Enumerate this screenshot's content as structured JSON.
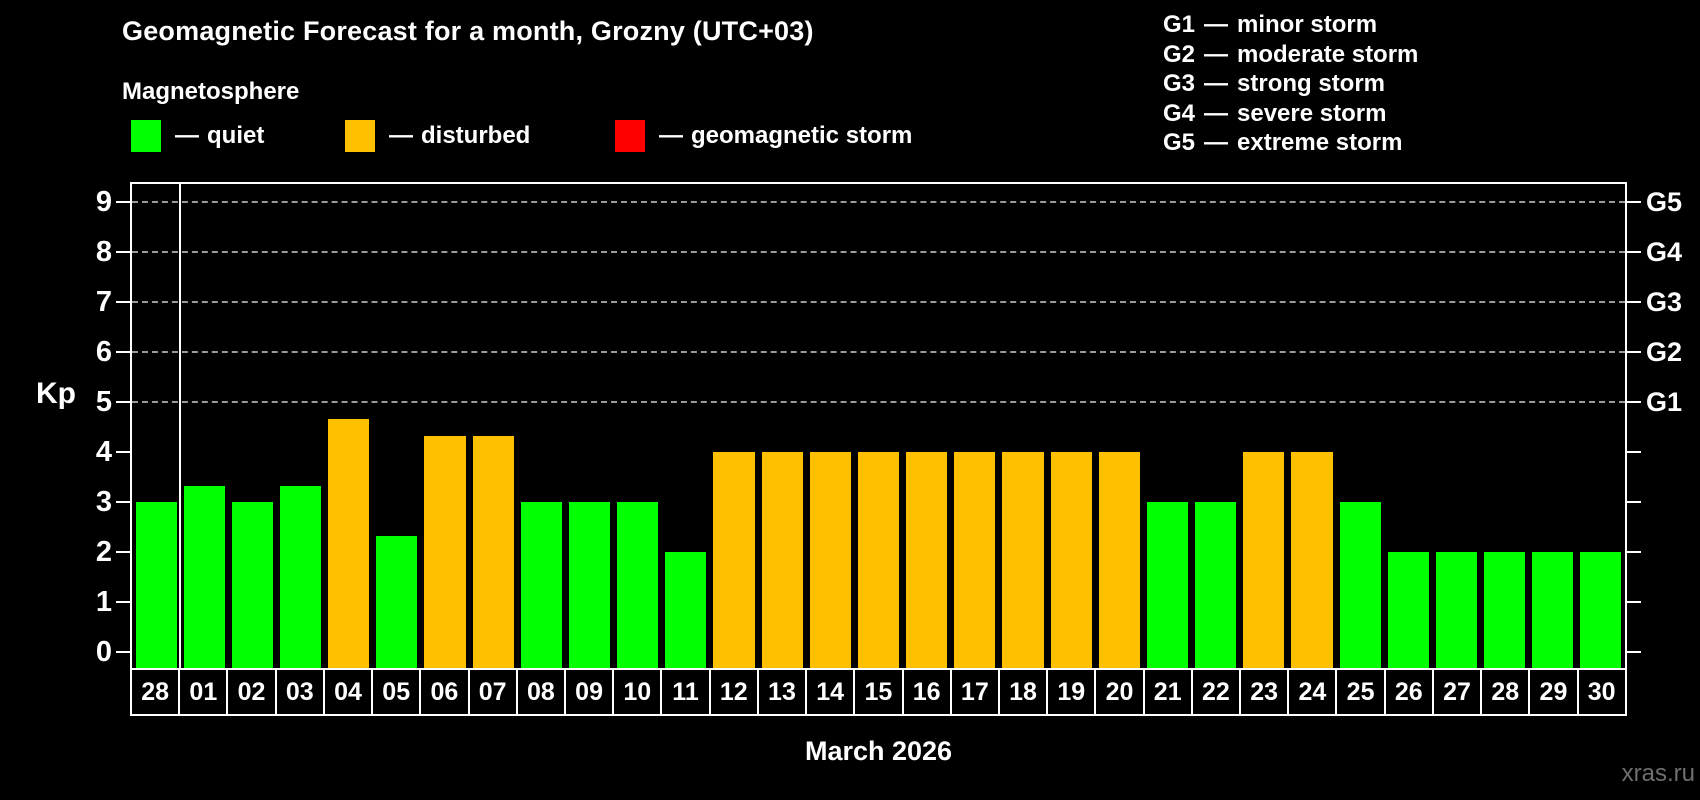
{
  "title": "Geomagnetic Forecast for a month, Grozny (UTC+03)",
  "subtitle": "Magnetosphere",
  "strings": {
    "dash": "—"
  },
  "colors": {
    "background": "#000000",
    "quiet": "#00ff00",
    "disturbed": "#ffc000",
    "storm": "#ff0000",
    "grid": "#9b9b9b",
    "axis": "#ffffff",
    "watermark": "#6f6f6f"
  },
  "legend": {
    "items": [
      {
        "label": "quiet",
        "status": "quiet",
        "color": "#00ff00"
      },
      {
        "label": "disturbed",
        "status": "disturbed",
        "color": "#ffc000"
      },
      {
        "label": "geomagnetic storm",
        "status": "storm",
        "color": "#ff0000"
      }
    ]
  },
  "g_legend": [
    {
      "code": "G1",
      "label": "minor storm"
    },
    {
      "code": "G2",
      "label": "moderate storm"
    },
    {
      "code": "G3",
      "label": "strong storm"
    },
    {
      "code": "G4",
      "label": "severe storm"
    },
    {
      "code": "G5",
      "label": "extreme storm"
    }
  ],
  "watermark": "xras.ru",
  "chart_data": {
    "type": "bar",
    "title": "Geomagnetic Forecast for a month, Grozny (UTC+03)",
    "ylabel": "Kp",
    "footer": "March 2026",
    "ylim": [
      0,
      9
    ],
    "yticks": [
      0,
      1,
      2,
      3,
      4,
      5,
      6,
      7,
      8,
      9
    ],
    "gridlines_kp": [
      5,
      6,
      7,
      8,
      9
    ],
    "grid": "dashed, horizontal only at G-storm levels",
    "legend_position": "top",
    "right_axis": [
      {
        "kp": 5,
        "label": "G1"
      },
      {
        "kp": 6,
        "label": "G2"
      },
      {
        "kp": 7,
        "label": "G3"
      },
      {
        "kp": 8,
        "label": "G4"
      },
      {
        "kp": 9,
        "label": "G5"
      }
    ],
    "month_separator_after_index": 0,
    "bars": [
      {
        "day": "28",
        "kp": 3.0,
        "status": "quiet"
      },
      {
        "day": "01",
        "kp": 3.33,
        "status": "quiet"
      },
      {
        "day": "02",
        "kp": 3.0,
        "status": "quiet"
      },
      {
        "day": "03",
        "kp": 3.33,
        "status": "quiet"
      },
      {
        "day": "04",
        "kp": 4.67,
        "status": "disturbed"
      },
      {
        "day": "05",
        "kp": 2.33,
        "status": "quiet"
      },
      {
        "day": "06",
        "kp": 4.33,
        "status": "disturbed"
      },
      {
        "day": "07",
        "kp": 4.33,
        "status": "disturbed"
      },
      {
        "day": "08",
        "kp": 3.0,
        "status": "quiet"
      },
      {
        "day": "09",
        "kp": 3.0,
        "status": "quiet"
      },
      {
        "day": "10",
        "kp": 3.0,
        "status": "quiet"
      },
      {
        "day": "11",
        "kp": 2.0,
        "status": "quiet"
      },
      {
        "day": "12",
        "kp": 4.0,
        "status": "disturbed"
      },
      {
        "day": "13",
        "kp": 4.0,
        "status": "disturbed"
      },
      {
        "day": "14",
        "kp": 4.0,
        "status": "disturbed"
      },
      {
        "day": "15",
        "kp": 4.0,
        "status": "disturbed"
      },
      {
        "day": "16",
        "kp": 4.0,
        "status": "disturbed"
      },
      {
        "day": "17",
        "kp": 4.0,
        "status": "disturbed"
      },
      {
        "day": "18",
        "kp": 4.0,
        "status": "disturbed"
      },
      {
        "day": "19",
        "kp": 4.0,
        "status": "disturbed"
      },
      {
        "day": "20",
        "kp": 4.0,
        "status": "disturbed"
      },
      {
        "day": "21",
        "kp": 3.0,
        "status": "quiet"
      },
      {
        "day": "22",
        "kp": 3.0,
        "status": "quiet"
      },
      {
        "day": "23",
        "kp": 4.0,
        "status": "disturbed"
      },
      {
        "day": "24",
        "kp": 4.0,
        "status": "disturbed"
      },
      {
        "day": "25",
        "kp": 3.0,
        "status": "quiet"
      },
      {
        "day": "26",
        "kp": 2.0,
        "status": "quiet"
      },
      {
        "day": "27",
        "kp": 2.0,
        "status": "quiet"
      },
      {
        "day": "28",
        "kp": 2.0,
        "status": "quiet"
      },
      {
        "day": "29",
        "kp": 2.0,
        "status": "quiet"
      },
      {
        "day": "30",
        "kp": 2.0,
        "status": "quiet"
      }
    ]
  }
}
